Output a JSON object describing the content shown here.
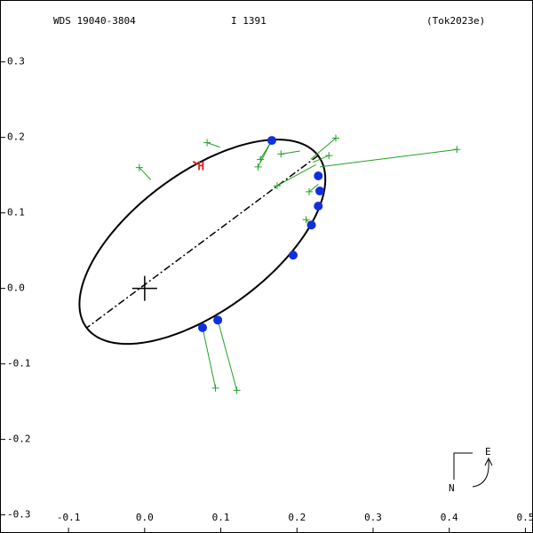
{
  "chart_data": {
    "type": "orbit",
    "header": [
      "WDS 19040-3804",
      "I  1391",
      "(Tok2023e)"
    ],
    "xlim": [
      -0.19,
      0.51
    ],
    "ylim": [
      -0.324,
      0.382
    ],
    "xticks": [
      -0.1,
      {
        "value": 0,
        "label": "0.0"
      },
      0.1,
      0.2,
      0.3,
      0.4,
      0.5
    ],
    "yticks": [
      0.3,
      0.2,
      0.1,
      {
        "value": 0,
        "label": "0.0"
      },
      -0.1,
      -0.2,
      -0.3
    ],
    "orbit": {
      "center": [
        0.0758,
        0.0618
      ],
      "a": 0.19,
      "b": 0.091,
      "angle": 36.9,
      "color": "#000000"
    },
    "observations": {
      "color": "#22a022",
      "x": [
        -0.007,
        0.082,
        0.152,
        0.149,
        0.179,
        0.251,
        0.41,
        0.242,
        0.174,
        0.216,
        0.212,
        0.093,
        0.121
      ],
      "y": [
        0.16,
        0.193,
        0.171,
        0.161,
        0.178,
        0.199,
        0.184,
        0.176,
        0.136,
        0.128,
        0.091,
        -0.132,
        -0.135
      ],
      "fit_x": [
        0.008,
        0.099,
        0.167,
        0.167,
        0.204,
        0.218,
        0.23,
        0.221,
        0.225,
        0.228,
        0.219,
        0.076,
        0.096
      ],
      "fit_y": [
        0.144,
        0.187,
        0.196,
        0.196,
        0.182,
        0.171,
        0.161,
        0.167,
        0.164,
        0.138,
        0.084,
        -0.052,
        -0.042
      ]
    },
    "points": {
      "color": "#1030e0",
      "x": [
        0.167,
        0.228,
        0.23,
        0.228,
        0.219,
        0.195,
        0.096,
        0.076
      ],
      "y": [
        0.196,
        0.149,
        0.129,
        0.109,
        0.084,
        0.044,
        -0.042,
        -0.052
      ]
    },
    "marker": {
      "text": "H",
      "x": 0.074,
      "y": 0.161,
      "color": "#e02020"
    },
    "compass": [
      "E",
      "N"
    ]
  }
}
